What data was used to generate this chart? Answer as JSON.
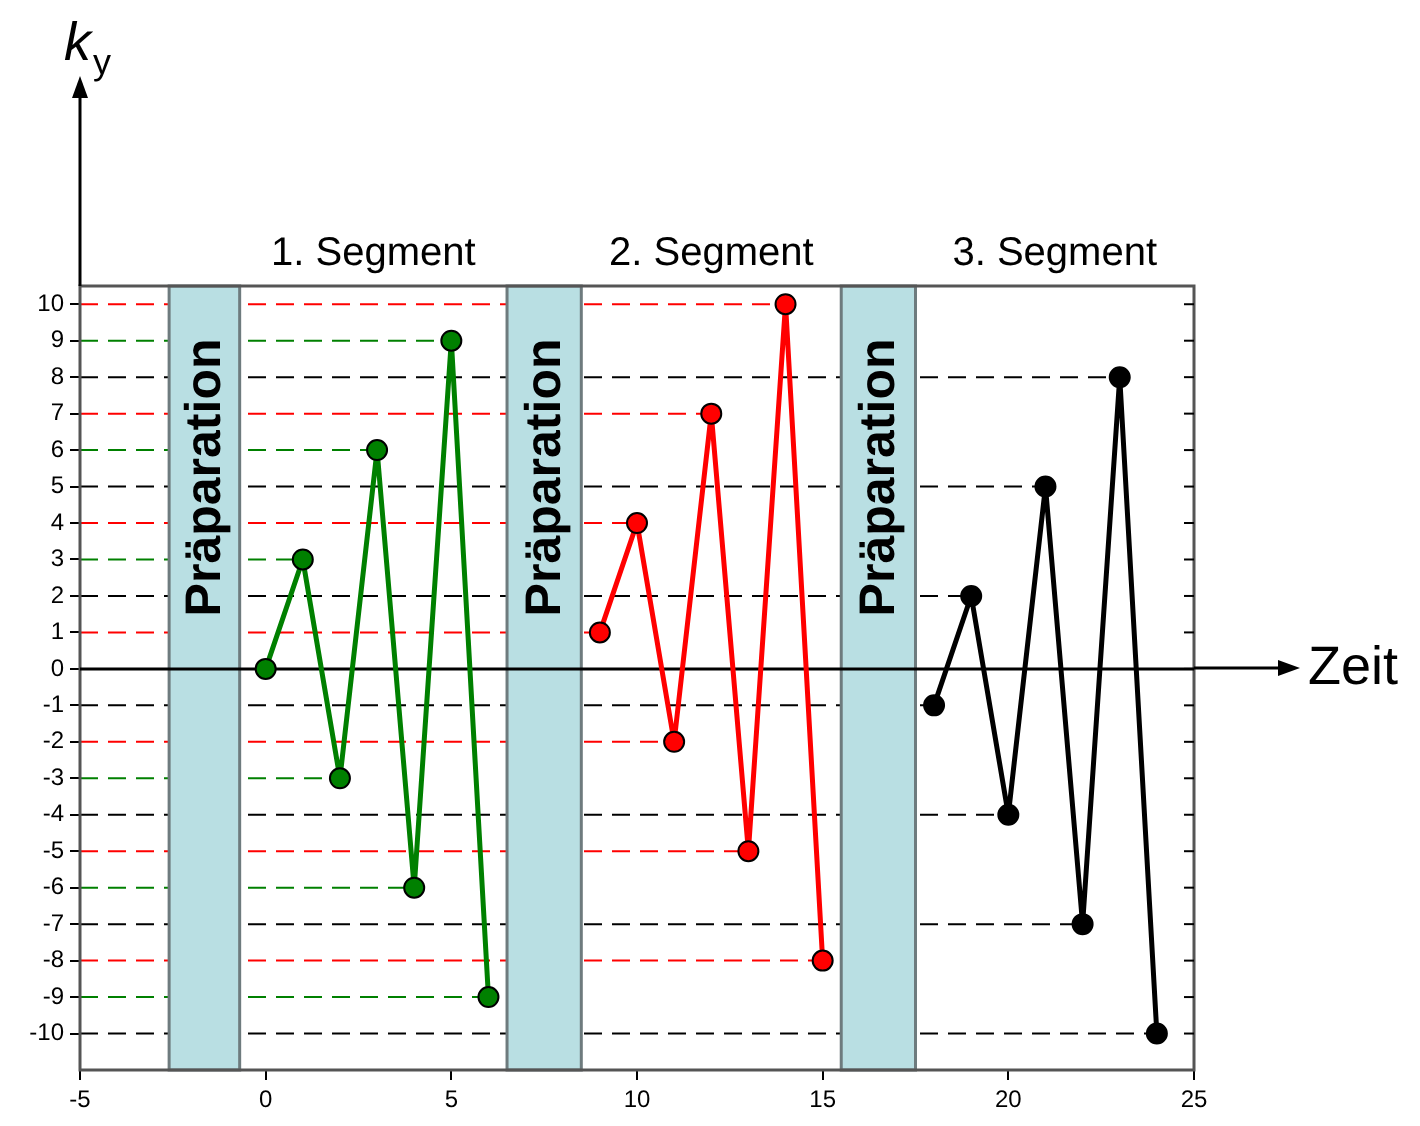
{
  "chart_data": {
    "type": "line",
    "ylabel": "k$_{y}$",
    "xlabel": "Zeit",
    "annotations": [
      "1. Segment",
      "2. Segment",
      "3. Segment"
    ],
    "xlim": [
      -5,
      25
    ],
    "xticks": [
      -5,
      0,
      5,
      10,
      15,
      20,
      25
    ],
    "ylim": [
      -11,
      10.5
    ],
    "yticks": [
      -10,
      -9,
      -8,
      -7,
      -6,
      -5,
      -4,
      -3,
      -2,
      -1,
      0,
      1,
      2,
      3,
      4,
      5,
      6,
      7,
      8,
      9,
      10
    ],
    "marker": "circle",
    "legend": false,
    "line_style": "solid",
    "ref_lines": [
      {
        "axis": "y",
        "value": 10,
        "color": "#ff0000",
        "line_style": "dashed"
      },
      {
        "axis": "y",
        "value": 9,
        "color": "#008000",
        "line_style": "dashed"
      },
      {
        "axis": "y",
        "value": 8,
        "color": "#000000",
        "line_style": "dashed"
      },
      {
        "axis": "y",
        "value": 7,
        "color": "#ff0000",
        "line_style": "dashed"
      },
      {
        "axis": "y",
        "value": 6,
        "color": "#008000",
        "line_style": "dashed"
      },
      {
        "axis": "y",
        "value": 5,
        "color": "#000000",
        "line_style": "dashed"
      },
      {
        "axis": "y",
        "value": 4,
        "color": "#ff0000",
        "line_style": "dashed"
      },
      {
        "axis": "y",
        "value": 3,
        "color": "#008000",
        "line_style": "dashed"
      },
      {
        "axis": "y",
        "value": 2,
        "color": "#000000",
        "line_style": "dashed"
      },
      {
        "axis": "y",
        "value": 1,
        "color": "#ff0000",
        "line_style": "dashed"
      },
      {
        "axis": "y",
        "value": -1,
        "color": "#000000",
        "line_style": "dashed"
      },
      {
        "axis": "y",
        "value": -2,
        "color": "#ff0000",
        "line_style": "dashed"
      },
      {
        "axis": "y",
        "value": -3,
        "color": "#008000",
        "line_style": "dashed"
      },
      {
        "axis": "y",
        "value": -4,
        "color": "#000000",
        "line_style": "dashed"
      },
      {
        "axis": "y",
        "value": -5,
        "color": "#ff0000",
        "line_style": "dashed"
      },
      {
        "axis": "y",
        "value": -6,
        "color": "#008000",
        "line_style": "dashed"
      },
      {
        "axis": "y",
        "value": -7,
        "color": "#000000",
        "line_style": "dashed"
      },
      {
        "axis": "y",
        "value": -8,
        "color": "#ff0000",
        "line_style": "dashed"
      },
      {
        "axis": "y",
        "value": -9,
        "color": "#008000",
        "line_style": "dashed"
      },
      {
        "axis": "y",
        "value": -10,
        "color": "#000000",
        "line_style": "dashed"
      }
    ],
    "bands": [
      {
        "axis": "x",
        "from": -2.6,
        "to": -0.7,
        "label": "Präparation",
        "color": "#b9dfe3"
      },
      {
        "axis": "x",
        "from": 6.5,
        "to": 8.5,
        "label": "Präparation",
        "color": "#b9dfe3"
      },
      {
        "axis": "x",
        "from": 15.5,
        "to": 17.5,
        "label": "Präparation",
        "color": "#b9dfe3"
      }
    ],
    "series": [
      {
        "color": "#008000",
        "x": [
          0,
          1,
          2,
          3,
          4,
          5,
          6
        ],
        "values": [
          0,
          3,
          -3,
          6,
          -6,
          9,
          -9
        ]
      },
      {
        "color": "#ff0000",
        "x": [
          9,
          10,
          11,
          12,
          13,
          14,
          15
        ],
        "values": [
          1,
          4,
          -2,
          7,
          -5,
          10,
          -8
        ]
      },
      {
        "color": "#000000",
        "x": [
          18,
          19,
          20,
          21,
          22,
          23,
          24
        ],
        "values": [
          -1,
          2,
          -4,
          5,
          -7,
          8,
          -10
        ]
      }
    ]
  }
}
